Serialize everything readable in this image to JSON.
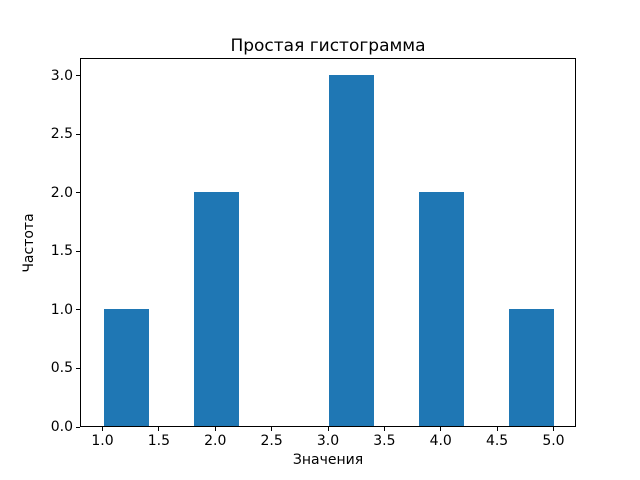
{
  "chart_data": {
    "type": "bar",
    "subtype": "histogram",
    "title": "Простая гистограмма",
    "xlabel": "Значения",
    "ylabel": "Частота",
    "bar_color": "#1f77b4",
    "background_color": "#ffffff",
    "grid": false,
    "legend": null,
    "xlim": [
      0.8,
      5.2
    ],
    "ylim": [
      0,
      3.15
    ],
    "bins": [
      {
        "x0": 1.0,
        "x1": 1.4,
        "count": 1
      },
      {
        "x0": 1.8,
        "x1": 2.2,
        "count": 2
      },
      {
        "x0": 3.0,
        "x1": 3.4,
        "count": 3
      },
      {
        "x0": 3.8,
        "x1": 4.2,
        "count": 2
      },
      {
        "x0": 4.6,
        "x1": 5.0,
        "count": 1
      }
    ],
    "counts": [
      1,
      2,
      3,
      2,
      1
    ],
    "xticks": [
      {
        "v": 1.0,
        "label": "1.0"
      },
      {
        "v": 1.5,
        "label": "1.5"
      },
      {
        "v": 2.0,
        "label": "2.0"
      },
      {
        "v": 2.5,
        "label": "2.5"
      },
      {
        "v": 3.0,
        "label": "3.0"
      },
      {
        "v": 3.5,
        "label": "3.5"
      },
      {
        "v": 4.0,
        "label": "4.0"
      },
      {
        "v": 4.5,
        "label": "4.5"
      },
      {
        "v": 5.0,
        "label": "5.0"
      }
    ],
    "yticks": [
      {
        "v": 0.0,
        "label": "0.0"
      },
      {
        "v": 0.5,
        "label": "0.5"
      },
      {
        "v": 1.0,
        "label": "1.0"
      },
      {
        "v": 1.5,
        "label": "1.5"
      },
      {
        "v": 2.0,
        "label": "2.0"
      },
      {
        "v": 2.5,
        "label": "2.5"
      },
      {
        "v": 3.0,
        "label": "3.0"
      }
    ]
  }
}
